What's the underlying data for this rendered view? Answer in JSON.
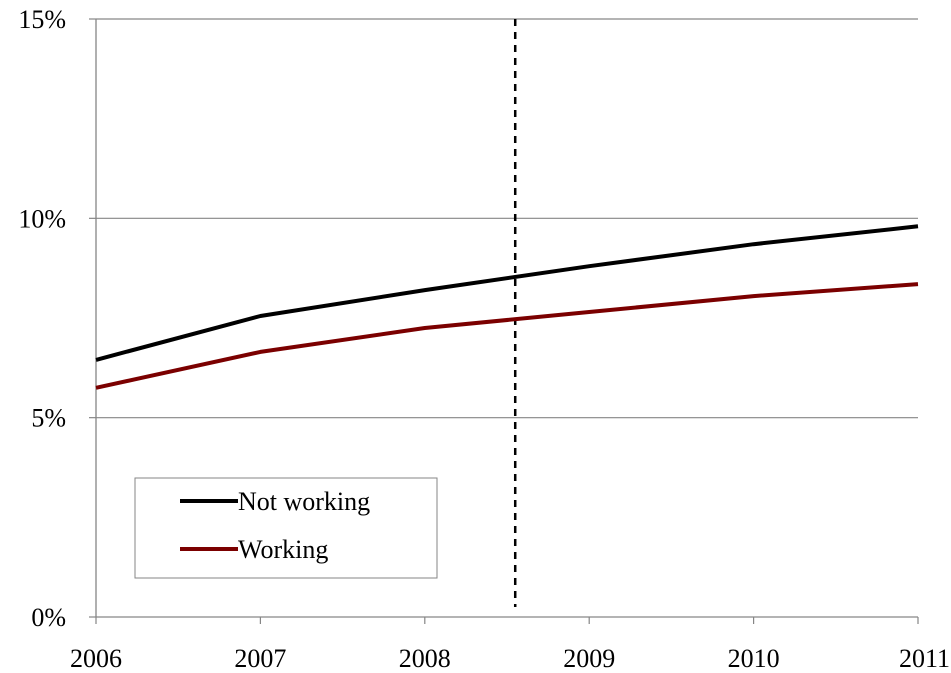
{
  "chart_data": {
    "type": "line",
    "x": [
      2006,
      2007,
      2008,
      2009,
      2010,
      2011
    ],
    "xlim": [
      2006,
      2011
    ],
    "ylim": [
      0,
      15
    ],
    "y_ticks": [
      0,
      5,
      10,
      15
    ],
    "y_tick_labels": [
      "0%",
      "5%",
      "10%",
      "15%"
    ],
    "x_tick_labels": [
      "2006",
      "2007",
      "2008",
      "2009",
      "2010",
      "2011"
    ],
    "grid": "horizontal",
    "reference_line": {
      "x": 2008.55,
      "style": "dashed"
    },
    "legend_position": "bottom-left",
    "series": [
      {
        "name": "Not working",
        "color": "#000000",
        "values": [
          6.45,
          7.55,
          8.2,
          8.8,
          9.35,
          9.8
        ]
      },
      {
        "name": "Working",
        "color": "#7b0000",
        "values": [
          5.75,
          6.65,
          7.25,
          7.65,
          8.05,
          8.35
        ]
      }
    ]
  }
}
